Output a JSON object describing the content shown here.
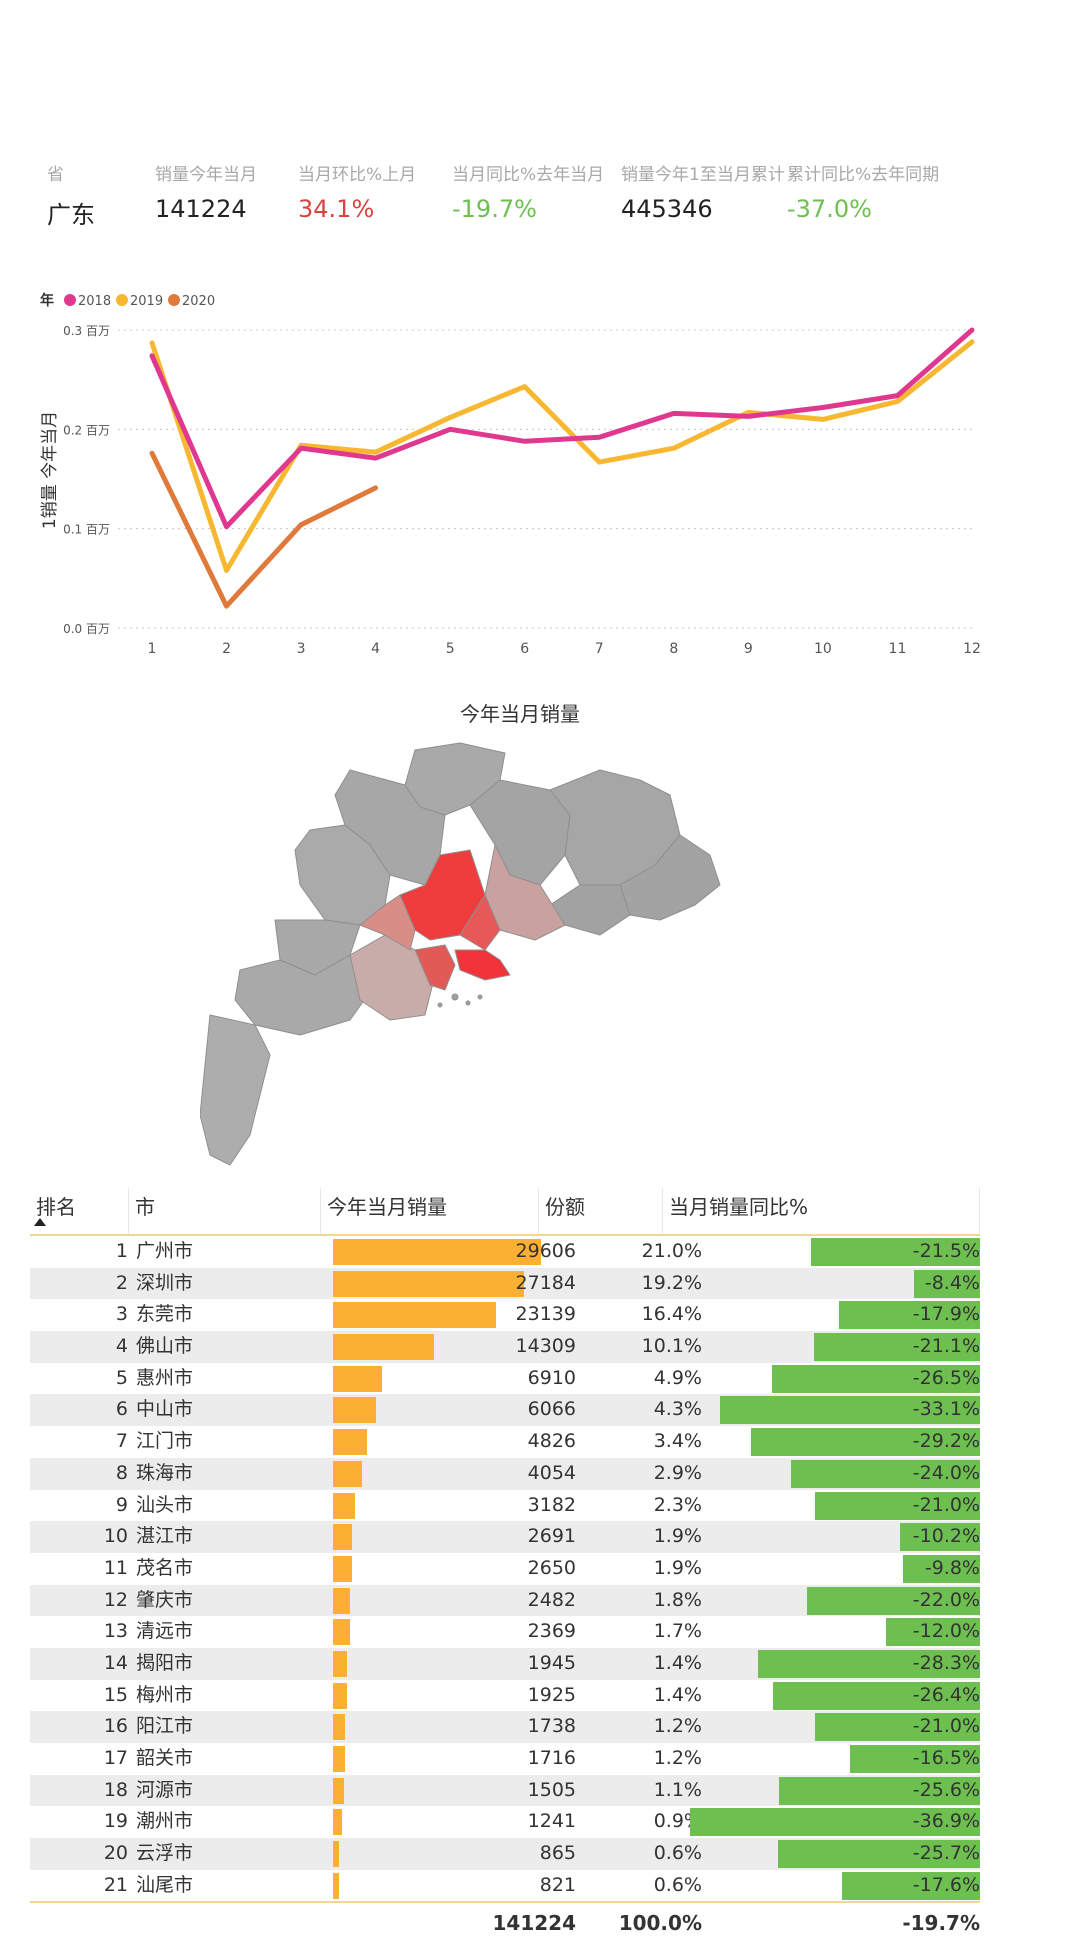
{
  "kpi": {
    "labels": [
      "省",
      "销量今年当月",
      "当月环比%上月",
      "当月同比%去年当月",
      "销量今年1至当月累计",
      "累计同比%去年同期"
    ],
    "values": [
      "广东",
      "141224",
      "34.1%",
      "-19.7%",
      "445346",
      "-37.0%"
    ],
    "value_colors": [
      "#222222",
      "#222222",
      "#d9433e",
      "#6dbf4f",
      "#222222",
      "#6dbf4f"
    ]
  },
  "line_chart": {
    "legend_title": "年",
    "ylabel": "1销量 今年当月",
    "y_ticks": [
      "0.0 百万",
      "0.1 百万",
      "0.2 百万",
      "0.3 百万"
    ]
  },
  "map": {
    "title": "今年当月销量"
  },
  "table": {
    "headers": [
      "排名",
      "市",
      "今年当月销量",
      "份额",
      "当月销量同比%"
    ],
    "rows": [
      {
        "rank": "1",
        "city": "广州市",
        "sales": "29606",
        "share": "21.0%",
        "yoy": "-21.5%"
      },
      {
        "rank": "2",
        "city": "深圳市",
        "sales": "27184",
        "share": "19.2%",
        "yoy": "-8.4%"
      },
      {
        "rank": "3",
        "city": "东莞市",
        "sales": "23139",
        "share": "16.4%",
        "yoy": "-17.9%"
      },
      {
        "rank": "4",
        "city": "佛山市",
        "sales": "14309",
        "share": "10.1%",
        "yoy": "-21.1%"
      },
      {
        "rank": "5",
        "city": "惠州市",
        "sales": "6910",
        "share": "4.9%",
        "yoy": "-26.5%"
      },
      {
        "rank": "6",
        "city": "中山市",
        "sales": "6066",
        "share": "4.3%",
        "yoy": "-33.1%"
      },
      {
        "rank": "7",
        "city": "江门市",
        "sales": "4826",
        "share": "3.4%",
        "yoy": "-29.2%"
      },
      {
        "rank": "8",
        "city": "珠海市",
        "sales": "4054",
        "share": "2.9%",
        "yoy": "-24.0%"
      },
      {
        "rank": "9",
        "city": "汕头市",
        "sales": "3182",
        "share": "2.3%",
        "yoy": "-21.0%"
      },
      {
        "rank": "10",
        "city": "湛江市",
        "sales": "2691",
        "share": "1.9%",
        "yoy": "-10.2%"
      },
      {
        "rank": "11",
        "city": "茂名市",
        "sales": "2650",
        "share": "1.9%",
        "yoy": "-9.8%"
      },
      {
        "rank": "12",
        "city": "肇庆市",
        "sales": "2482",
        "share": "1.8%",
        "yoy": "-22.0%"
      },
      {
        "rank": "13",
        "city": "清远市",
        "sales": "2369",
        "share": "1.7%",
        "yoy": "-12.0%"
      },
      {
        "rank": "14",
        "city": "揭阳市",
        "sales": "1945",
        "share": "1.4%",
        "yoy": "-28.3%"
      },
      {
        "rank": "15",
        "city": "梅州市",
        "sales": "1925",
        "share": "1.4%",
        "yoy": "-26.4%"
      },
      {
        "rank": "16",
        "city": "阳江市",
        "sales": "1738",
        "share": "1.2%",
        "yoy": "-21.0%"
      },
      {
        "rank": "17",
        "city": "韶关市",
        "sales": "1716",
        "share": "1.2%",
        "yoy": "-16.5%"
      },
      {
        "rank": "18",
        "city": "河源市",
        "sales": "1505",
        "share": "1.1%",
        "yoy": "-25.6%"
      },
      {
        "rank": "19",
        "city": "潮州市",
        "sales": "1241",
        "share": "0.9%",
        "yoy": "-36.9%"
      },
      {
        "rank": "20",
        "city": "云浮市",
        "sales": "865",
        "share": "0.6%",
        "yoy": "-25.7%"
      },
      {
        "rank": "21",
        "city": "汕尾市",
        "sales": "821",
        "share": "0.6%",
        "yoy": "-17.6%"
      }
    ],
    "total": {
      "sales": "141224",
      "share": "100.0%",
      "yoy": "-19.7%"
    }
  },
  "chart_data": [
    {
      "type": "line",
      "title": "",
      "xlabel": "",
      "ylabel": "1销量 今年当月",
      "ylim": [
        0,
        0.3
      ],
      "y_unit": "百万",
      "grid": true,
      "legend_title": "年",
      "legend_position": "top-left",
      "x": [
        1,
        2,
        3,
        4,
        5,
        6,
        7,
        8,
        9,
        10,
        11,
        12
      ],
      "series": [
        {
          "name": "2018",
          "color": "#e0388f",
          "values": [
            0.274,
            0.102,
            0.181,
            0.171,
            0.2,
            0.188,
            0.192,
            0.216,
            0.213,
            0.222,
            0.234,
            0.3
          ]
        },
        {
          "name": "2019",
          "color": "#f7b731",
          "values": [
            0.287,
            0.058,
            0.184,
            0.177,
            0.212,
            0.243,
            0.167,
            0.181,
            0.217,
            0.21,
            0.228,
            0.288
          ]
        },
        {
          "name": "2020",
          "color": "#e07a3b",
          "values": [
            0.176,
            0.022,
            0.104,
            0.141,
            null,
            null,
            null,
            null,
            null,
            null,
            null,
            null
          ]
        }
      ]
    },
    {
      "type": "table",
      "title": "",
      "columns": [
        "排名",
        "市",
        "今年当月销量",
        "份额",
        "当月销量同比%"
      ],
      "sales": [
        29606,
        27184,
        23139,
        14309,
        6910,
        6066,
        4826,
        4054,
        3182,
        2691,
        2650,
        2482,
        2369,
        1945,
        1925,
        1738,
        1716,
        1505,
        1241,
        865,
        821
      ],
      "yoy_pct": [
        -21.5,
        -8.4,
        -17.9,
        -21.1,
        -26.5,
        -33.1,
        -29.2,
        -24.0,
        -21.0,
        -10.2,
        -9.8,
        -22.0,
        -12.0,
        -28.3,
        -26.4,
        -21.0,
        -16.5,
        -25.6,
        -36.9,
        -25.7,
        -17.6
      ],
      "bar_colors": {
        "sales": "#fbb034",
        "yoy": "#6dbf4f"
      }
    }
  ]
}
